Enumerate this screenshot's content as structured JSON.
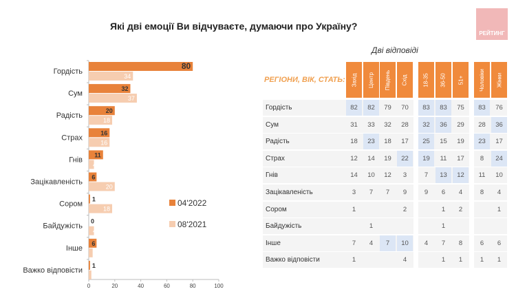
{
  "title": "Які дві емоції Ви відчуваєте, думаючи про Україну?",
  "logo_text": "РЕЙТИНГ",
  "colors": {
    "series_2022": "#e8823a",
    "series_2021": "#f6cdb0",
    "header": "#f08a3c",
    "highlight": "#dce6f5"
  },
  "chart_data": {
    "type": "bar",
    "orientation": "horizontal",
    "categories": [
      "Гордість",
      "Сум",
      "Радість",
      "Страх",
      "Гнів",
      "Зацікавленість",
      "Сором",
      "Байдужість",
      "Інше",
      "Важко відповісти"
    ],
    "series": [
      {
        "name": "04'2022",
        "values": [
          80,
          32,
          20,
          16,
          11,
          6,
          1,
          0,
          6,
          1
        ]
      },
      {
        "name": "08'2021",
        "values": [
          34,
          37,
          18,
          16,
          4,
          20,
          18,
          4,
          3,
          2
        ]
      }
    ],
    "xlim": [
      0,
      100
    ],
    "xticks": [
      "0",
      "20",
      "40",
      "60",
      "80",
      "100"
    ],
    "legend_position": "right"
  },
  "table": {
    "subtitle": "Дві відповіді",
    "label": "РЕГІОНИ, ВІК, СТАТЬ:",
    "columns": [
      "Захід",
      "Центр",
      "Південь",
      "Схід",
      "18-35",
      "36-50",
      "51+",
      "Чоловіки",
      "Жінки"
    ],
    "rows": [
      {
        "label": "Гордість",
        "values": [
          "82",
          "82",
          "79",
          "70",
          "83",
          "83",
          "75",
          "83",
          "76"
        ],
        "highlighted": [
          0,
          1,
          4,
          5,
          7
        ]
      },
      {
        "label": "Сум",
        "values": [
          "31",
          "33",
          "32",
          "28",
          "32",
          "36",
          "29",
          "28",
          "36"
        ],
        "highlighted": [
          4,
          5,
          8
        ]
      },
      {
        "label": "Радість",
        "values": [
          "18",
          "23",
          "18",
          "17",
          "25",
          "15",
          "19",
          "23",
          "17"
        ],
        "highlighted": [
          1,
          4,
          7
        ]
      },
      {
        "label": "Страх",
        "values": [
          "12",
          "14",
          "19",
          "22",
          "19",
          "11",
          "17",
          "8",
          "24"
        ],
        "highlighted": [
          3,
          4,
          8
        ]
      },
      {
        "label": "Гнів",
        "values": [
          "14",
          "10",
          "12",
          "3",
          "7",
          "13",
          "12",
          "11",
          "10"
        ],
        "highlighted": [
          5,
          6
        ]
      },
      {
        "label": "Зацікавленість",
        "values": [
          "3",
          "7",
          "7",
          "9",
          "9",
          "6",
          "4",
          "8",
          "4"
        ],
        "highlighted": []
      },
      {
        "label": "Сором",
        "values": [
          "1",
          "",
          "",
          "2",
          "",
          "1",
          "2",
          "",
          "1"
        ],
        "highlighted": []
      },
      {
        "label": "Байдужість",
        "values": [
          "",
          "1",
          "",
          "",
          "",
          "1",
          "",
          "",
          ""
        ],
        "highlighted": []
      },
      {
        "label": "Інше",
        "values": [
          "7",
          "4",
          "7",
          "10",
          "4",
          "7",
          "8",
          "6",
          "6"
        ],
        "highlighted": [
          2,
          3
        ]
      },
      {
        "label": "Важко відповісти",
        "values": [
          "1",
          "",
          "",
          "4",
          "",
          "1",
          "1",
          "1",
          "1"
        ],
        "highlighted": []
      }
    ]
  }
}
